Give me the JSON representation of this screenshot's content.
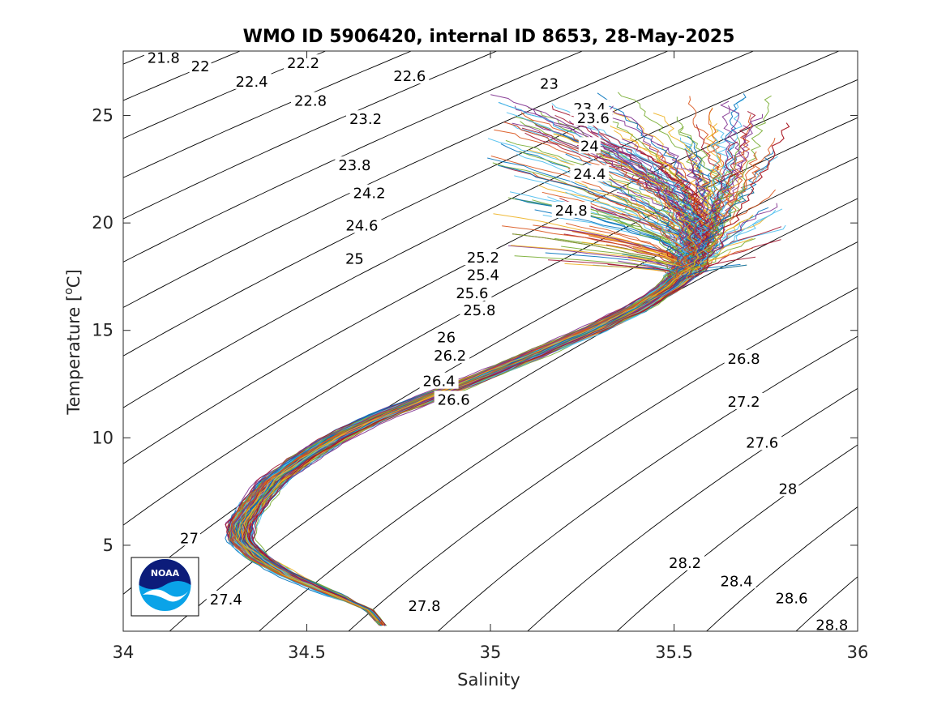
{
  "chart_data": {
    "type": "line",
    "title": "WMO ID 5906420, internal ID 8653, 28-May-2025",
    "xlabel": "Salinity",
    "ylabel_main": "Temperature [",
    "ylabel_sup": "o",
    "ylabel_tail": "C]",
    "xlim": [
      34,
      36
    ],
    "ylim": [
      1,
      28
    ],
    "x_ticks": [
      34,
      34.5,
      35,
      35.5,
      36
    ],
    "x_tick_labels": [
      "34",
      "34.5",
      "35",
      "35.5",
      "36"
    ],
    "y_ticks": [
      5,
      10,
      15,
      20,
      25
    ],
    "y_tick_labels": [
      "5",
      "10",
      "15",
      "20",
      "25"
    ],
    "grid": false,
    "legend": "none",
    "density_contours": {
      "levels": [
        21.8,
        22,
        22.2,
        22.4,
        22.6,
        22.8,
        23,
        23.2,
        23.4,
        23.6,
        23.8,
        24,
        24.2,
        24.4,
        24.6,
        24.8,
        25,
        25.2,
        25.4,
        25.6,
        25.8,
        26,
        26.2,
        26.4,
        26.6,
        26.8,
        27,
        27.2,
        27.4,
        27.6,
        27.8,
        28,
        28.2,
        28.4,
        28.6,
        28.8
      ],
      "labels": [
        {
          "text": "21.8",
          "S": 34.11,
          "T": 27.6
        },
        {
          "text": "22",
          "S": 34.21,
          "T": 27.2
        },
        {
          "text": "22.2",
          "S": 34.49,
          "T": 27.35
        },
        {
          "text": "22.4",
          "S": 34.35,
          "T": 26.5
        },
        {
          "text": "22.6",
          "S": 34.78,
          "T": 26.75
        },
        {
          "text": "22.8",
          "S": 34.51,
          "T": 25.6
        },
        {
          "text": "23",
          "S": 35.16,
          "T": 26.4
        },
        {
          "text": "23.2",
          "S": 34.66,
          "T": 24.75
        },
        {
          "text": "23.4",
          "S": 35.27,
          "T": 25.25
        },
        {
          "text": "23.6",
          "S": 35.28,
          "T": 24.8
        },
        {
          "text": "23.8",
          "S": 34.63,
          "T": 22.6
        },
        {
          "text": "24",
          "S": 35.27,
          "T": 23.5
        },
        {
          "text": "24.2",
          "S": 34.67,
          "T": 21.3
        },
        {
          "text": "24.4",
          "S": 35.27,
          "T": 22.2
        },
        {
          "text": "24.6",
          "S": 34.65,
          "T": 19.8
        },
        {
          "text": "24.8",
          "S": 35.22,
          "T": 20.5
        },
        {
          "text": "25",
          "S": 34.63,
          "T": 18.25
        },
        {
          "text": "25.2",
          "S": 34.98,
          "T": 18.3
        },
        {
          "text": "25.4",
          "S": 34.98,
          "T": 17.5
        },
        {
          "text": "25.6",
          "S": 34.95,
          "T": 16.65
        },
        {
          "text": "25.8",
          "S": 34.97,
          "T": 15.85
        },
        {
          "text": "26",
          "S": 34.88,
          "T": 14.6
        },
        {
          "text": "26.2",
          "S": 34.89,
          "T": 13.75
        },
        {
          "text": "26.4",
          "S": 34.86,
          "T": 12.55
        },
        {
          "text": "26.6",
          "S": 34.9,
          "T": 11.7
        },
        {
          "text": "26.8",
          "S": 35.69,
          "T": 13.6
        },
        {
          "text": "27",
          "S": 34.18,
          "T": 5.25
        },
        {
          "text": "27.2",
          "S": 35.69,
          "T": 11.6
        },
        {
          "text": "27.4",
          "S": 34.28,
          "T": 2.4
        },
        {
          "text": "27.6",
          "S": 35.74,
          "T": 9.7
        },
        {
          "text": "27.8",
          "S": 34.82,
          "T": 2.1
        },
        {
          "text": "28",
          "S": 35.81,
          "T": 7.55
        },
        {
          "text": "28.2",
          "S": 35.53,
          "T": 4.1
        },
        {
          "text": "28.4",
          "S": 35.67,
          "T": 3.25
        },
        {
          "text": "28.6",
          "S": 35.82,
          "T": 2.45
        },
        {
          "text": "28.8",
          "S": 35.93,
          "T": 1.2
        }
      ]
    },
    "profiles": {
      "count": 220,
      "colors": [
        "#0072BD",
        "#D95319",
        "#EDB120",
        "#7E2F8E",
        "#77AC30",
        "#4DBEEE",
        "#A2142F"
      ],
      "mean_curve": [
        {
          "T": 1.2,
          "S": 34.71
        },
        {
          "T": 2.0,
          "S": 34.67
        },
        {
          "T": 2.8,
          "S": 34.56
        },
        {
          "T": 3.6,
          "S": 34.45
        },
        {
          "T": 4.4,
          "S": 34.37
        },
        {
          "T": 5.2,
          "S": 34.32
        },
        {
          "T": 6.0,
          "S": 34.32
        },
        {
          "T": 7.0,
          "S": 34.36
        },
        {
          "T": 8.0,
          "S": 34.41
        },
        {
          "T": 9.0,
          "S": 34.49
        },
        {
          "T": 10.0,
          "S": 34.58
        },
        {
          "T": 11.0,
          "S": 34.7
        },
        {
          "T": 12.0,
          "S": 34.85
        },
        {
          "T": 13.0,
          "S": 35.0
        },
        {
          "T": 14.0,
          "S": 35.14
        },
        {
          "T": 15.0,
          "S": 35.28
        },
        {
          "T": 16.0,
          "S": 35.4
        },
        {
          "T": 17.0,
          "S": 35.49
        },
        {
          "T": 18.0,
          "S": 35.55
        },
        {
          "T": 19.0,
          "S": 35.58
        },
        {
          "T": 20.0,
          "S": 35.6
        },
        {
          "T": 21.0,
          "S": 35.62
        },
        {
          "T": 22.0,
          "S": 35.64
        },
        {
          "T": 23.0,
          "S": 35.65
        },
        {
          "T": 24.0,
          "S": 35.64
        }
      ],
      "surface_range": {
        "S": [
          34.95,
          35.85
        ],
        "T": [
          18.0,
          26.5
        ]
      }
    }
  },
  "logo": {
    "name": "NOAA",
    "text": "NOAA",
    "colors": {
      "navy": "#0c1c7a",
      "sky": "#0aa3e8",
      "white": "#ffffff"
    }
  }
}
